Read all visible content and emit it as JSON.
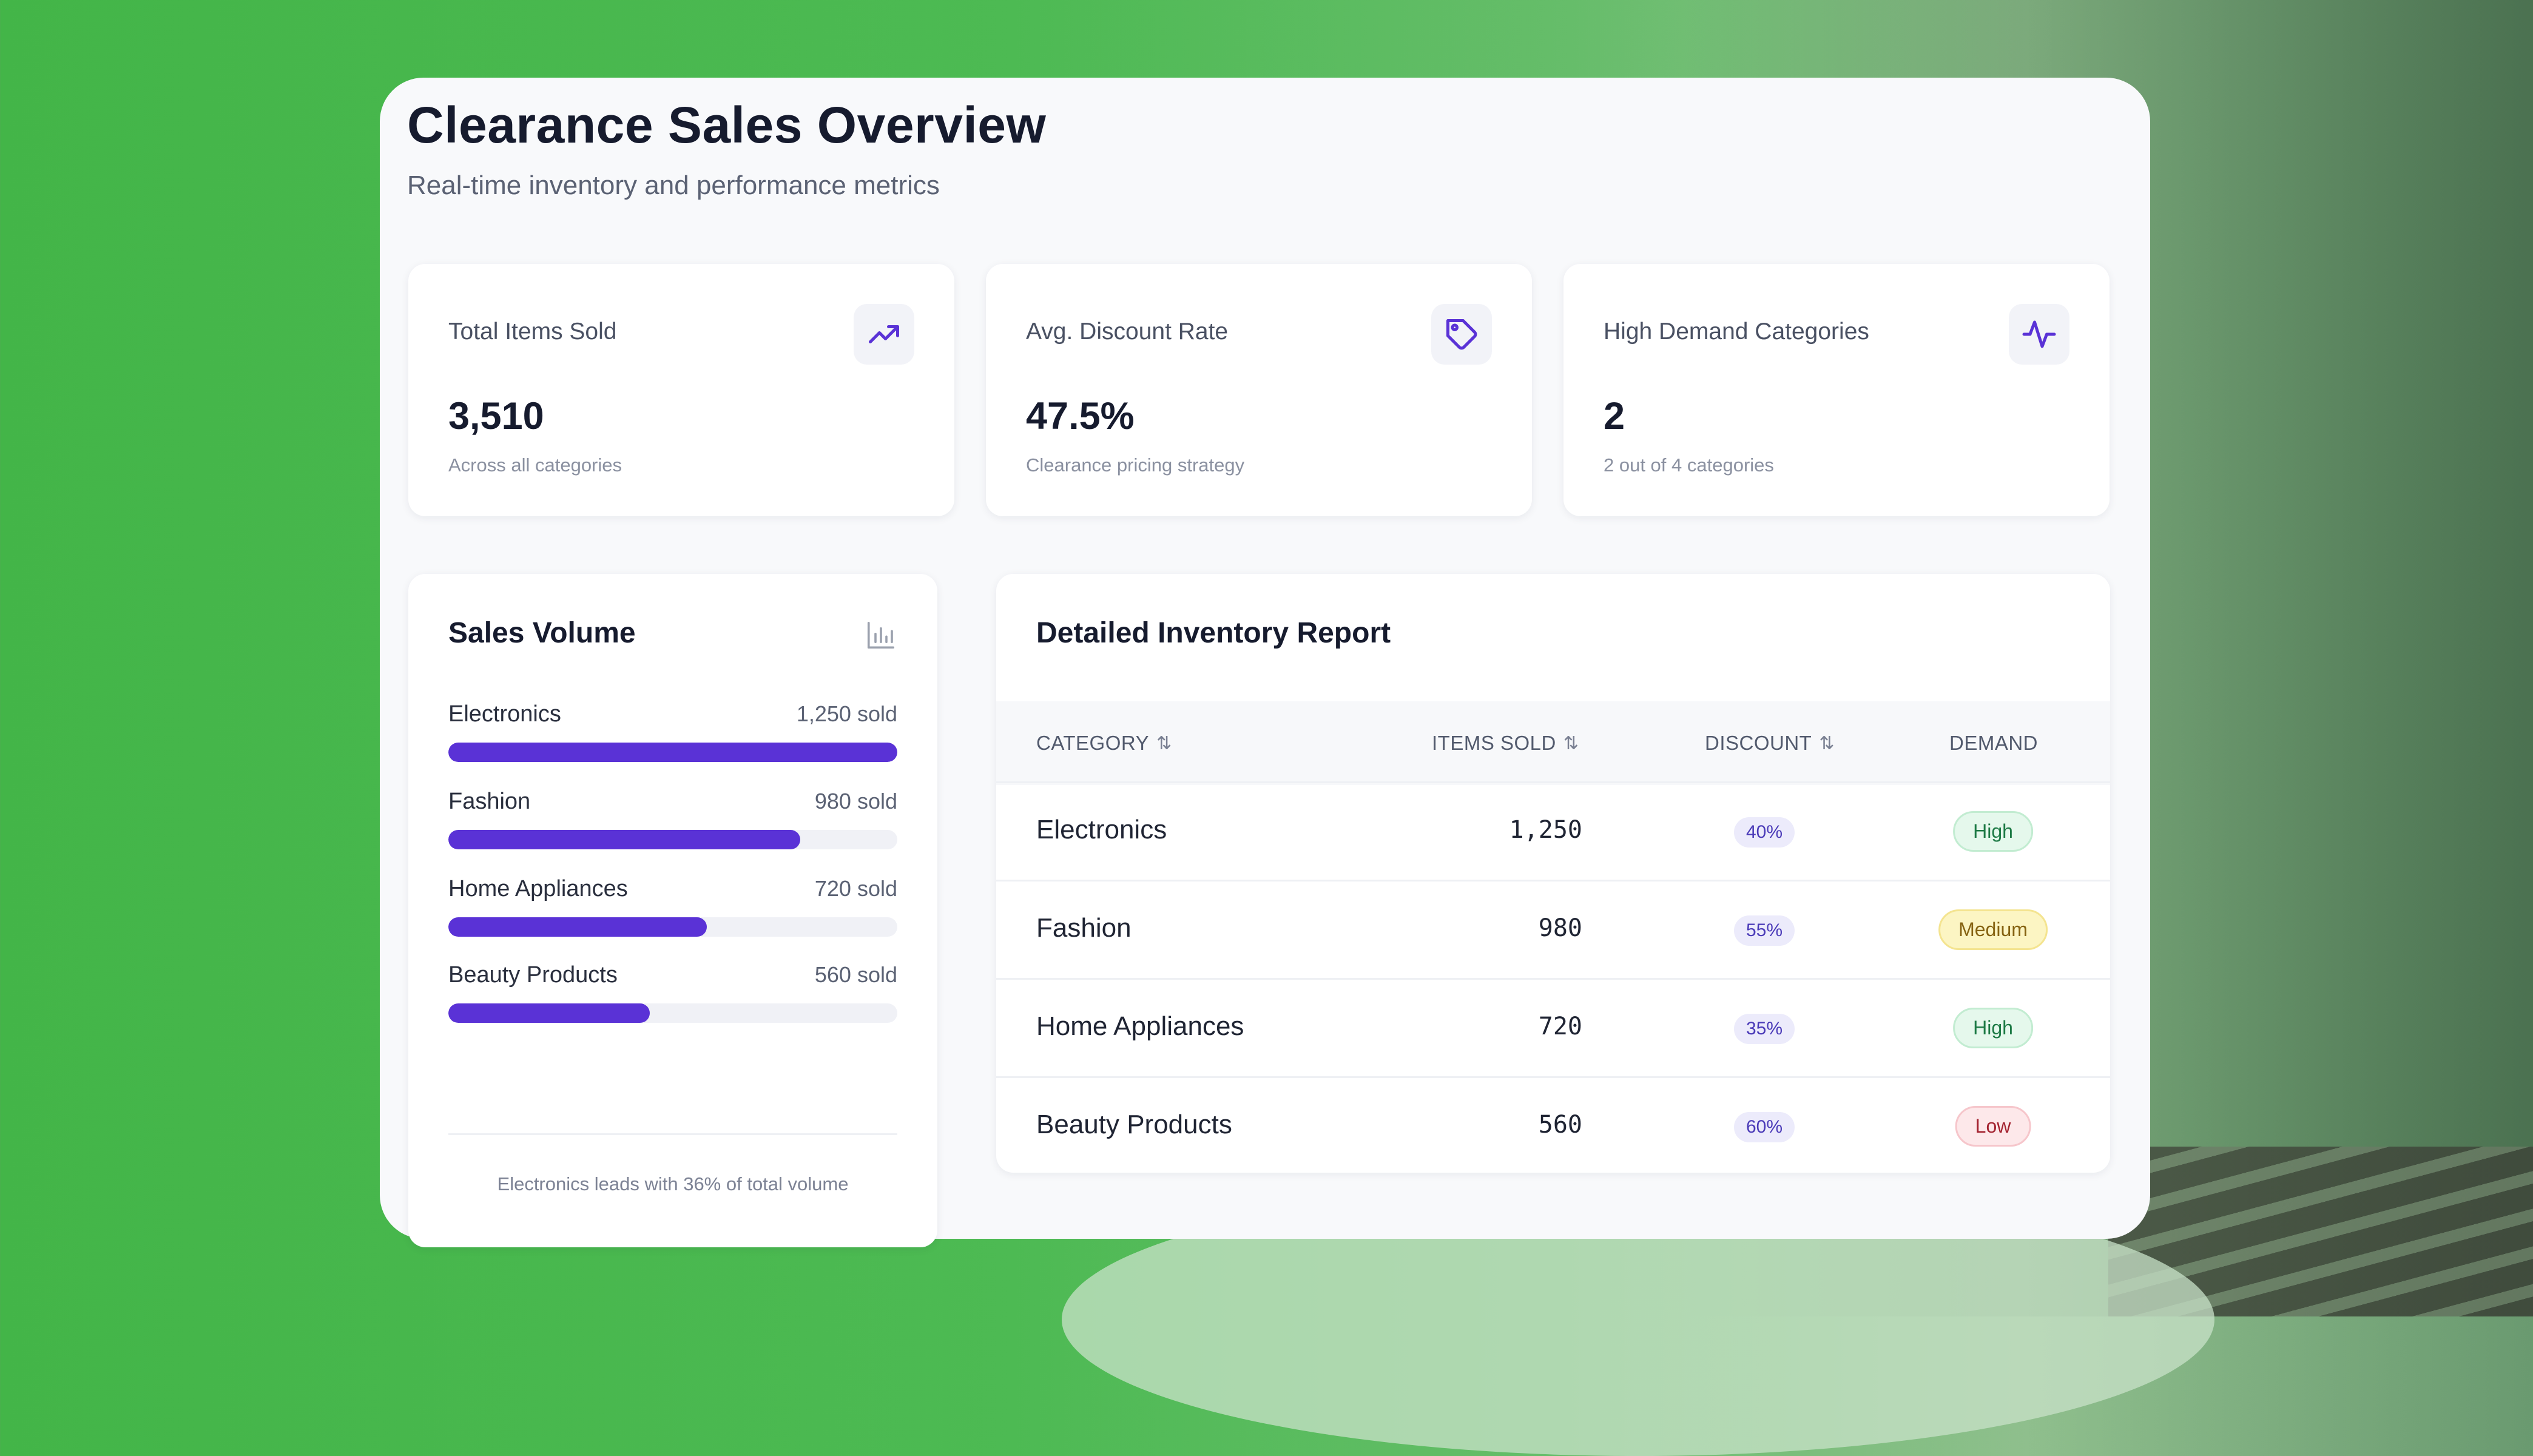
{
  "header": {
    "title": "Clearance Sales Overview",
    "subtitle": "Real-time inventory and performance metrics"
  },
  "stats": [
    {
      "label": "Total Items Sold",
      "value": "3,510",
      "sub": "Across all categories",
      "icon": "trending-up-icon"
    },
    {
      "label": "Avg. Discount Rate",
      "value": "47.5%",
      "sub": "Clearance pricing strategy",
      "icon": "tag-icon"
    },
    {
      "label": "High Demand Categories",
      "value": "2",
      "sub": "2 out of 4 categories",
      "icon": "activity-icon"
    }
  ],
  "sales_volume": {
    "title": "Sales Volume",
    "icon": "bar-chart-icon",
    "max": 1250,
    "items": [
      {
        "name": "Electronics",
        "sold_label": "1,250 sold",
        "sold": 1250
      },
      {
        "name": "Fashion",
        "sold_label": "980 sold",
        "sold": 980
      },
      {
        "name": "Home Appliances",
        "sold_label": "720 sold",
        "sold": 720
      },
      {
        "name": "Beauty Products",
        "sold_label": "560 sold",
        "sold": 560
      }
    ],
    "note": "Electronics leads with 36% of total volume"
  },
  "inventory": {
    "title": "Detailed Inventory Report",
    "columns": [
      "CATEGORY",
      "ITEMS SOLD",
      "DISCOUNT",
      "DEMAND"
    ],
    "rows": [
      {
        "category": "Electronics",
        "items_sold": "1,250",
        "discount": "40%",
        "demand": "High"
      },
      {
        "category": "Fashion",
        "items_sold": "980",
        "discount": "55%",
        "demand": "Medium"
      },
      {
        "category": "Home Appliances",
        "items_sold": "720",
        "discount": "35%",
        "demand": "High"
      },
      {
        "category": "Beauty Products",
        "items_sold": "560",
        "discount": "60%",
        "demand": "Low"
      }
    ]
  },
  "colors": {
    "accent": "#5a32d6",
    "background": "#4cb852",
    "card": "#f8f9fb",
    "demand_high": "#1d7a45",
    "demand_medium": "#866312",
    "demand_low": "#a3222f"
  }
}
